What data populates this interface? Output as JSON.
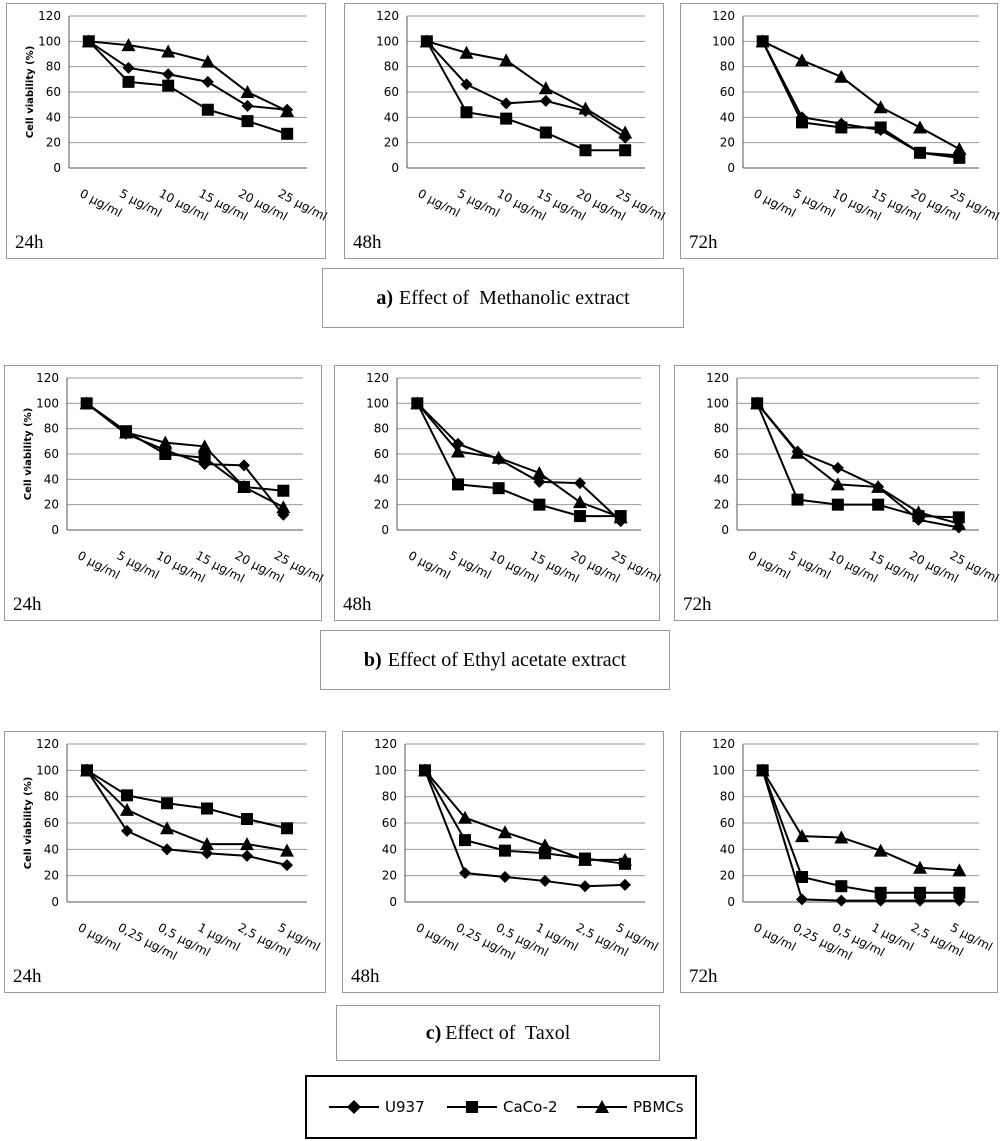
{
  "y_axis_title": "Cell viability (%)",
  "legend": [
    {
      "name": "U937",
      "marker": "diamond"
    },
    {
      "name": "CaCo-2",
      "marker": "square"
    },
    {
      "name": "PBMCs",
      "marker": "triangle"
    }
  ],
  "legend_text": {
    "s0": "U937",
    "s1": "CaCo-2",
    "s2": "PBMCs"
  },
  "captions": {
    "a": {
      "letter": "a)",
      "text": "Effect of  Methanolic extract"
    },
    "b": {
      "letter": "b)",
      "text": "Effect of Ethyl acetate extract"
    },
    "c": {
      "letter": "c)",
      "text": "Effect of  Taxol"
    }
  },
  "chart_data": [
    {
      "type": "line",
      "group": "a",
      "time_label": "24h",
      "ylim": [
        0,
        120
      ],
      "yticks": [
        0,
        20,
        40,
        60,
        80,
        100,
        120
      ],
      "categories": [
        "0 µg/ml",
        "5 µg/ml",
        "10 µg/ml",
        "15 µg/ml",
        "20 µg/ml",
        "25 µg/ml"
      ],
      "show_ylabel": true,
      "series": [
        {
          "name": "U937",
          "values": [
            100,
            79,
            74,
            68,
            49,
            46
          ]
        },
        {
          "name": "CaCo-2",
          "values": [
            100,
            68,
            65,
            46,
            37,
            27
          ]
        },
        {
          "name": "PBMCs",
          "values": [
            100,
            97,
            92,
            84,
            60,
            45
          ]
        }
      ]
    },
    {
      "type": "line",
      "group": "a",
      "time_label": "48h",
      "ylim": [
        0,
        120
      ],
      "yticks": [
        0,
        20,
        40,
        60,
        80,
        100,
        120
      ],
      "categories": [
        "0 µg/ml",
        "5 µg/ml",
        "10 µg/ml",
        "15 µg/ml",
        "20 µg/ml",
        "25 µg/ml"
      ],
      "show_ylabel": false,
      "series": [
        {
          "name": "U937",
          "values": [
            100,
            66,
            51,
            53,
            45,
            24
          ]
        },
        {
          "name": "CaCo-2",
          "values": [
            100,
            44,
            39,
            28,
            14,
            14
          ]
        },
        {
          "name": "PBMCs",
          "values": [
            100,
            91,
            85,
            63,
            47,
            28
          ]
        }
      ]
    },
    {
      "type": "line",
      "group": "a",
      "time_label": "72h",
      "ylim": [
        0,
        120
      ],
      "yticks": [
        0,
        20,
        40,
        60,
        80,
        100,
        120
      ],
      "categories": [
        "0 µg/ml",
        "5 µg/ml",
        "10 µg/ml",
        "15 µg/ml",
        "20 µg/ml",
        "25 µg/ml"
      ],
      "show_ylabel": false,
      "series": [
        {
          "name": "U937",
          "values": [
            100,
            40,
            35,
            30,
            12,
            10
          ]
        },
        {
          "name": "CaCo-2",
          "values": [
            100,
            36,
            32,
            32,
            12,
            8
          ]
        },
        {
          "name": "PBMCs",
          "values": [
            100,
            85,
            72,
            48,
            32,
            15
          ]
        }
      ]
    },
    {
      "type": "line",
      "group": "b",
      "time_label": "24h",
      "ylim": [
        0,
        120
      ],
      "yticks": [
        0,
        20,
        40,
        60,
        80,
        100,
        120
      ],
      "categories": [
        "0 µg/ml",
        "5 µg/ml",
        "10 µg/ml",
        "15 µg/ml",
        "20 µg/ml",
        "25 µg/ml"
      ],
      "show_ylabel": true,
      "series": [
        {
          "name": "U937",
          "values": [
            100,
            76,
            63,
            52,
            51,
            12
          ]
        },
        {
          "name": "CaCo-2",
          "values": [
            100,
            78,
            60,
            57,
            34,
            31
          ]
        },
        {
          "name": "PBMCs",
          "values": [
            100,
            77,
            69,
            66,
            34,
            18
          ]
        }
      ]
    },
    {
      "type": "line",
      "group": "b",
      "time_label": "48h",
      "ylim": [
        0,
        120
      ],
      "yticks": [
        0,
        20,
        40,
        60,
        80,
        100,
        120
      ],
      "categories": [
        "0 µg/ml",
        "5 µg/ml",
        "10 µg/ml",
        "15 µg/ml",
        "20 µg/ml",
        "25 µg/ml"
      ],
      "show_ylabel": false,
      "series": [
        {
          "name": "U937",
          "values": [
            100,
            68,
            56,
            38,
            37,
            7
          ]
        },
        {
          "name": "CaCo-2",
          "values": [
            100,
            36,
            33,
            20,
            11,
            11
          ]
        },
        {
          "name": "PBMCs",
          "values": [
            100,
            62,
            57,
            45,
            22,
            10
          ]
        }
      ]
    },
    {
      "type": "line",
      "group": "b",
      "time_label": "72h",
      "ylim": [
        0,
        120
      ],
      "yticks": [
        0,
        20,
        40,
        60,
        80,
        100,
        120
      ],
      "categories": [
        "0 µg/ml",
        "5 µg/ml",
        "10 µg/ml",
        "15 µg/ml",
        "20 µg/ml",
        "25 µg/ml"
      ],
      "show_ylabel": false,
      "series": [
        {
          "name": "U937",
          "values": [
            100,
            62,
            49,
            34,
            8,
            2
          ]
        },
        {
          "name": "CaCo-2",
          "values": [
            100,
            24,
            20,
            20,
            11,
            10
          ]
        },
        {
          "name": "PBMCs",
          "values": [
            100,
            61,
            36,
            34,
            14,
            5
          ]
        }
      ]
    },
    {
      "type": "line",
      "group": "c",
      "time_label": "24h",
      "ylim": [
        0,
        120
      ],
      "yticks": [
        0,
        20,
        40,
        60,
        80,
        100,
        120
      ],
      "categories": [
        "0 µg/ml",
        "0,25 µg/ml",
        "0,5 µg/ml",
        "1 µg/ml",
        "2,5 µg/ml",
        "5 µg/ml"
      ],
      "show_ylabel": true,
      "series": [
        {
          "name": "U937",
          "values": [
            100,
            54,
            40,
            37,
            35,
            28
          ]
        },
        {
          "name": "CaCo-2",
          "values": [
            100,
            81,
            75,
            71,
            63,
            56
          ]
        },
        {
          "name": "PBMCs",
          "values": [
            100,
            70,
            56,
            44,
            44,
            39
          ]
        }
      ]
    },
    {
      "type": "line",
      "group": "c",
      "time_label": "48h",
      "ylim": [
        0,
        120
      ],
      "yticks": [
        0,
        20,
        40,
        60,
        80,
        100,
        120
      ],
      "categories": [
        "0 µg/ml",
        "0,25 µg/ml",
        "0,5 µg/ml",
        "1 µg/ml",
        "2,5 µg/ml",
        "5 µg/ml"
      ],
      "show_ylabel": false,
      "series": [
        {
          "name": "U937",
          "values": [
            100,
            22,
            19,
            16,
            12,
            13
          ]
        },
        {
          "name": "CaCo-2",
          "values": [
            100,
            47,
            39,
            37,
            33,
            29
          ]
        },
        {
          "name": "PBMCs",
          "values": [
            100,
            64,
            53,
            43,
            32,
            32
          ]
        }
      ]
    },
    {
      "type": "line",
      "group": "c",
      "time_label": "72h",
      "ylim": [
        0,
        120
      ],
      "yticks": [
        0,
        20,
        40,
        60,
        80,
        100,
        120
      ],
      "categories": [
        "0 µg/ml",
        "0,25 µg/ml",
        "0,5 µg/ml",
        "1 µg/ml",
        "2,5 µg/ml",
        "5 µg/ml"
      ],
      "show_ylabel": false,
      "series": [
        {
          "name": "U937",
          "values": [
            100,
            2,
            1,
            1,
            1,
            1
          ]
        },
        {
          "name": "CaCo-2",
          "values": [
            100,
            19,
            12,
            7,
            7,
            7
          ]
        },
        {
          "name": "PBMCs",
          "values": [
            100,
            50,
            49,
            39,
            26,
            24
          ]
        }
      ]
    }
  ]
}
